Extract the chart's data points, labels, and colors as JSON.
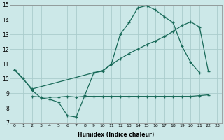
{
  "xlabel": "Humidex (Indice chaleur)",
  "background_color": "#cce8e8",
  "grid_color": "#aacccc",
  "line_color": "#1a6b5a",
  "xlim_min": -0.5,
  "xlim_max": 23.5,
  "ylim_min": 7,
  "ylim_max": 15,
  "xticks": [
    0,
    1,
    2,
    3,
    4,
    5,
    6,
    7,
    8,
    9,
    10,
    11,
    12,
    13,
    14,
    15,
    16,
    17,
    18,
    19,
    20,
    21,
    22,
    23
  ],
  "yticks": [
    7,
    8,
    9,
    10,
    11,
    12,
    13,
    14,
    15
  ],
  "line1_x": [
    0,
    1,
    2,
    3,
    4,
    5,
    6,
    7,
    8,
    9,
    10,
    11,
    12,
    13,
    14,
    15,
    16,
    17,
    18,
    19,
    20,
    21
  ],
  "line1_y": [
    10.6,
    10.0,
    9.2,
    8.7,
    8.6,
    8.4,
    7.5,
    7.4,
    8.9,
    10.4,
    10.5,
    11.0,
    13.0,
    13.8,
    14.8,
    14.95,
    14.65,
    14.2,
    13.8,
    12.2,
    11.1,
    10.4
  ],
  "line2_x": [
    0,
    2,
    9,
    10,
    11,
    12,
    13,
    14,
    15,
    16,
    17,
    18,
    19,
    20,
    21,
    22
  ],
  "line2_y": [
    10.6,
    9.3,
    10.4,
    10.55,
    10.95,
    11.35,
    11.7,
    12.0,
    12.3,
    12.55,
    12.85,
    13.2,
    13.6,
    13.85,
    13.5,
    10.5
  ],
  "line3_x": [
    2,
    3,
    4,
    5,
    6,
    7,
    8,
    9,
    10,
    11,
    12,
    13,
    14,
    15,
    16,
    17,
    18,
    19,
    20,
    21,
    22
  ],
  "line3_y": [
    8.8,
    8.75,
    8.75,
    8.75,
    8.8,
    8.75,
    8.8,
    8.8,
    8.8,
    8.8,
    8.8,
    8.8,
    8.8,
    8.8,
    8.8,
    8.8,
    8.8,
    8.8,
    8.8,
    8.85,
    8.9
  ]
}
